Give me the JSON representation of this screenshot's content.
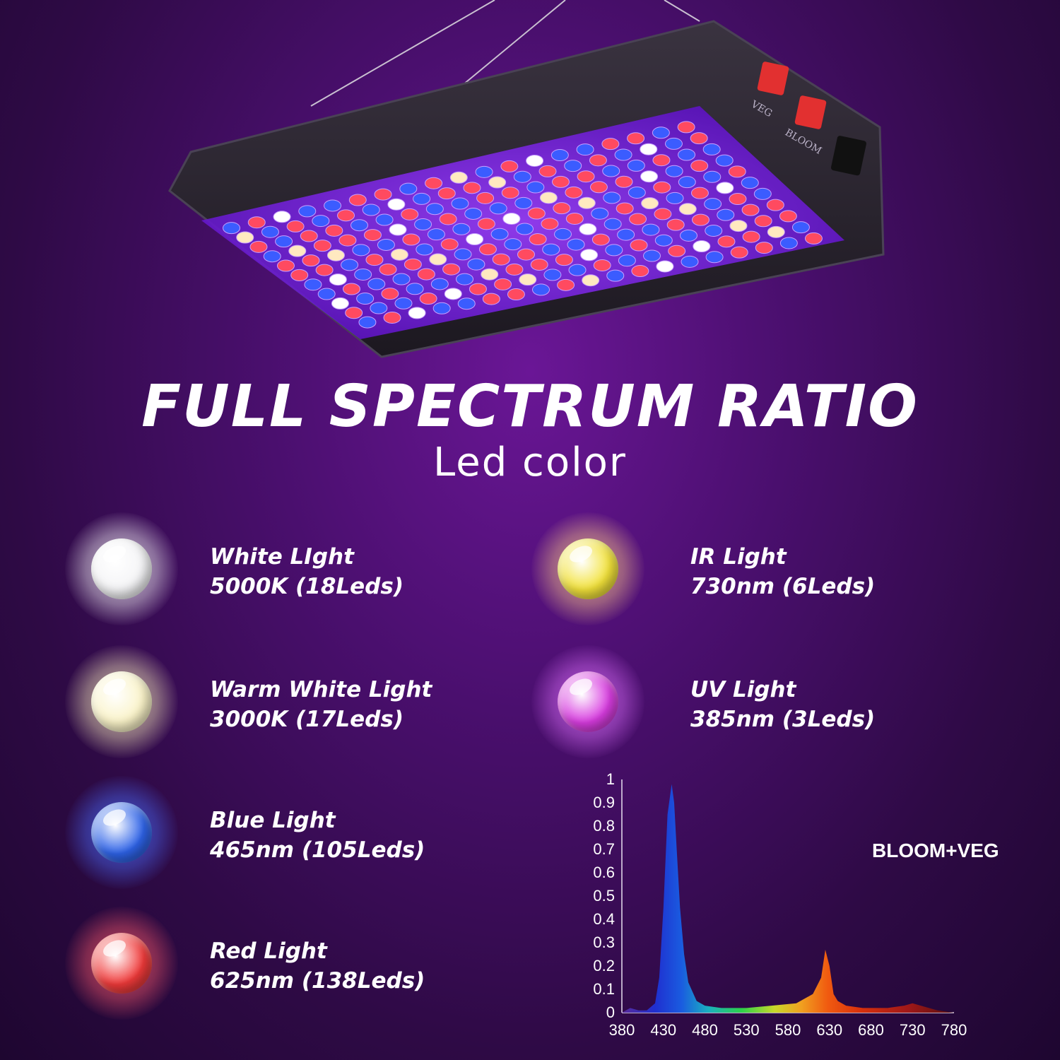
{
  "title": "FULL SPECTRUM RATIO",
  "subtitle": "Led color",
  "panel": {
    "switch_labels": [
      "VEG",
      "BLOOM"
    ]
  },
  "colors": {
    "background": "#3a0c58",
    "uv_glow": "#8a2be2"
  },
  "leds": [
    {
      "name": "White LIght",
      "spec": "5000K (18Leds)",
      "bulb": "#f4f4f6",
      "glow": "#ffffff"
    },
    {
      "name": "IR Light",
      "spec": "730nm (6Leds)",
      "bulb": "#f2e23a",
      "glow": "#ffcc88"
    },
    {
      "name": "Warm White Light",
      "spec": "3000K (17Leds)",
      "bulb": "#faf3c8",
      "glow": "#fff4c0"
    },
    {
      "name": "UV Light",
      "spec": "385nm (3Leds)",
      "bulb": "#d83ce0",
      "glow": "#e070ff"
    },
    {
      "name": "Blue Light",
      "spec": "465nm (105Leds)",
      "bulb": "#2e63e8",
      "glow": "#4a6cff"
    },
    {
      "name": "Red Light",
      "spec": "625nm (138Leds)",
      "bulb": "#f03a3a",
      "glow": "#ff5a6a"
    }
  ],
  "chart_data": {
    "type": "area",
    "label": "BLOOM+VEG",
    "x_ticks": [
      380,
      430,
      480,
      530,
      580,
      630,
      680,
      730,
      780
    ],
    "y_ticks": [
      "0",
      "0.1",
      "0.2",
      "0.3",
      "0.4",
      "0.5",
      "0.6",
      "0.7",
      "0.8",
      "0.9",
      "1"
    ],
    "xlim": [
      380,
      780
    ],
    "ylim": [
      0,
      1
    ],
    "x": [
      380,
      390,
      400,
      410,
      420,
      425,
      430,
      435,
      440,
      443,
      446,
      450,
      455,
      460,
      470,
      480,
      500,
      530,
      560,
      590,
      610,
      620,
      625,
      630,
      635,
      640,
      650,
      670,
      700,
      720,
      730,
      740,
      760,
      780
    ],
    "y": [
      0.0,
      0.02,
      0.01,
      0.01,
      0.04,
      0.15,
      0.45,
      0.85,
      0.98,
      0.9,
      0.7,
      0.45,
      0.25,
      0.13,
      0.05,
      0.03,
      0.02,
      0.02,
      0.03,
      0.04,
      0.08,
      0.15,
      0.27,
      0.2,
      0.08,
      0.05,
      0.03,
      0.02,
      0.02,
      0.03,
      0.04,
      0.03,
      0.01,
      0.0
    ]
  }
}
